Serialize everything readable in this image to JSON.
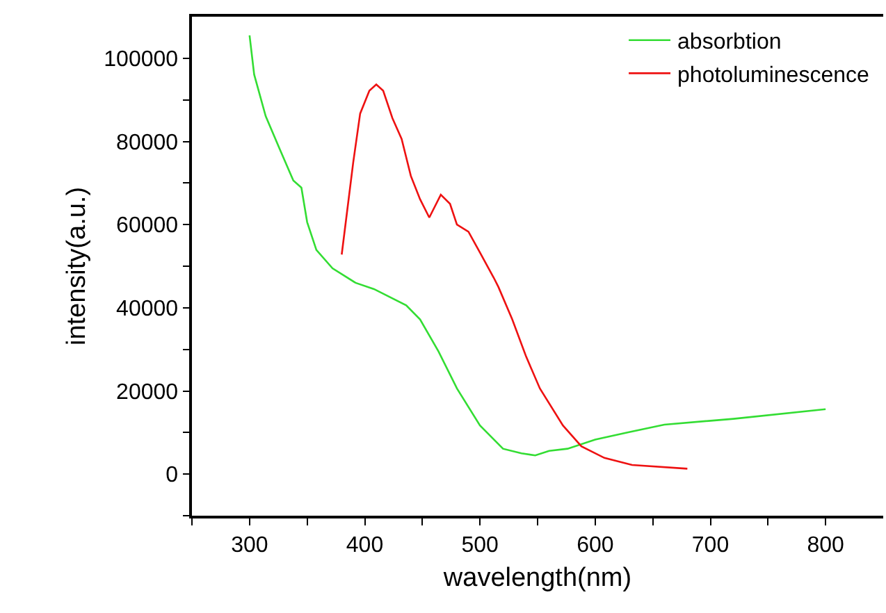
{
  "chart_data": {
    "type": "line",
    "xlabel": "wavelength(nm)",
    "ylabel": "intensity(a.u.)",
    "xlim": [
      250,
      850
    ],
    "xticks": [
      {
        "value": 250,
        "label": null
      },
      300,
      {
        "value": 350,
        "label": null
      },
      400,
      {
        "value": 450,
        "label": null
      },
      500,
      {
        "value": 550,
        "label": null
      },
      600,
      {
        "value": 650,
        "label": null
      },
      700,
      {
        "value": 750,
        "label": null
      },
      800
    ],
    "ylim": [
      -10000,
      110000
    ],
    "yticks": [
      {
        "value": -10000,
        "label": null
      },
      0,
      {
        "value": 10000,
        "label": null
      },
      20000,
      {
        "value": 30000,
        "label": null
      },
      40000,
      {
        "value": 50000,
        "label": null
      },
      60000,
      {
        "value": 70000,
        "label": null
      },
      80000,
      {
        "value": 90000,
        "label": null
      },
      100000
    ],
    "grid": false,
    "legend": "top right",
    "marker": "none",
    "line_style": "solid",
    "series": [
      {
        "name": "absorbtion",
        "color": "#33dd33",
        "x": [
          300,
          304,
          314,
          326,
          338,
          345,
          350,
          358,
          372,
          392,
          408,
          436,
          448,
          464,
          480,
          500,
          520,
          536,
          548,
          560,
          576,
          600,
          628,
          660,
          720,
          800
        ],
        "values": [
          105500,
          96100,
          86100,
          78300,
          70600,
          68900,
          60600,
          53900,
          49500,
          46000,
          44500,
          40600,
          37200,
          29500,
          20600,
          11700,
          6100,
          5000,
          4500,
          5600,
          6100,
          8300,
          10000,
          11900,
          13300,
          15600
        ]
      },
      {
        "name": "photoluminescence",
        "color": "#ee1111",
        "x": [
          380,
          390,
          396,
          404,
          410,
          416,
          424,
          432,
          440,
          448,
          456,
          466,
          474,
          480,
          490,
          500,
          512,
          516,
          528,
          540,
          552,
          572,
          588,
          608,
          632,
          680
        ],
        "values": [
          52800,
          75000,
          86700,
          92200,
          93700,
          92200,
          85600,
          80600,
          71700,
          66100,
          61700,
          67200,
          65000,
          60000,
          58300,
          53300,
          47200,
          45000,
          37200,
          28300,
          20600,
          11700,
          6700,
          3900,
          2200,
          1300
        ]
      }
    ]
  }
}
